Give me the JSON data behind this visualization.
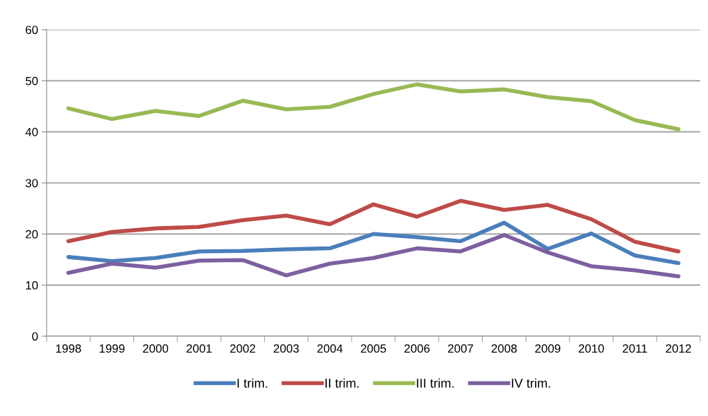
{
  "chart_data": {
    "type": "line",
    "categories": [
      "1998",
      "1999",
      "2000",
      "2001",
      "2002",
      "2003",
      "2004",
      "2005",
      "2006",
      "2007",
      "2008",
      "2009",
      "2010",
      "2011",
      "2012"
    ],
    "series": [
      {
        "name": "I trim.",
        "color": "#4a7ebb",
        "values": [
          15.5,
          14.7,
          15.3,
          16.6,
          16.7,
          17.0,
          17.2,
          20.0,
          19.4,
          18.6,
          22.2,
          17.1,
          20.1,
          15.8,
          14.3
        ]
      },
      {
        "name": "II trim.",
        "color": "#be4b48",
        "values": [
          18.6,
          20.4,
          21.1,
          21.4,
          22.7,
          23.6,
          21.9,
          25.8,
          23.4,
          26.5,
          24.7,
          25.7,
          22.9,
          18.5,
          16.6
        ]
      },
      {
        "name": "III trim.",
        "color": "#98b954",
        "values": [
          44.6,
          42.5,
          44.1,
          43.1,
          46.1,
          44.4,
          44.9,
          47.4,
          49.3,
          47.9,
          48.3,
          46.8,
          46.0,
          42.3,
          40.5
        ]
      },
      {
        "name": "IV trim.",
        "color": "#7d60a0",
        "values": [
          12.4,
          14.2,
          13.4,
          14.8,
          14.9,
          11.9,
          14.2,
          15.3,
          17.2,
          16.6,
          19.8,
          16.4,
          13.7,
          12.9,
          11.7
        ]
      }
    ],
    "ylim": [
      0,
      60
    ],
    "yticks": [
      0,
      10,
      20,
      30,
      40,
      50,
      60
    ],
    "grid": "y",
    "legend": "bottom",
    "marker": "none",
    "line_style": "solid"
  }
}
